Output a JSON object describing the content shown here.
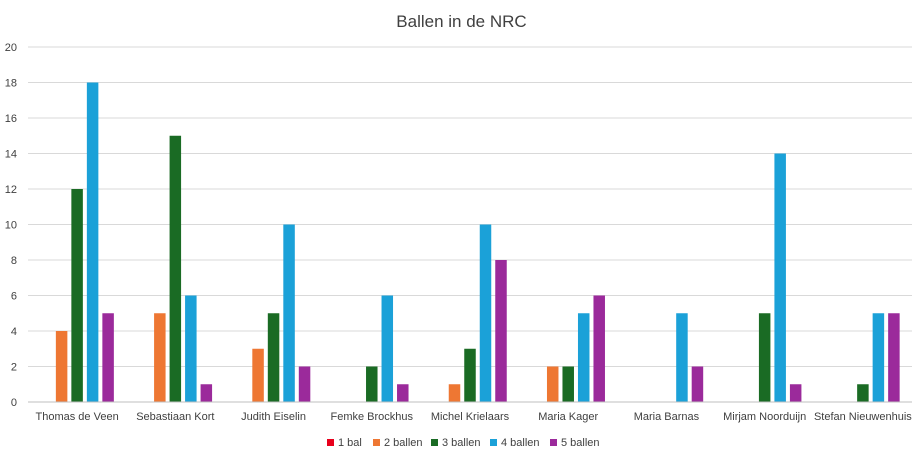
{
  "chart_data": {
    "type": "bar",
    "title": "Ballen in de NRC",
    "xlabel": "",
    "ylabel": "",
    "ylim": [
      0,
      20
    ],
    "yticks": [
      0,
      2,
      4,
      6,
      8,
      10,
      12,
      14,
      16,
      18,
      20
    ],
    "grid": true,
    "legend_position": "bottom",
    "categories": [
      "Thomas de Veen",
      "Sebastiaan Kort",
      "Judith Eiselin",
      "Femke Brockhus",
      "Michel Krielaars",
      "Maria Kager",
      "Maria Barnas",
      "Mirjam Noorduijn",
      "Stefan Nieuwenhuis"
    ],
    "series": [
      {
        "name": "1 bal",
        "color": "#e8001c",
        "values": [
          0,
          0,
          0,
          0,
          0,
          0,
          0,
          0,
          0
        ]
      },
      {
        "name": "2 ballen",
        "color": "#ee7733",
        "values": [
          4,
          5,
          3,
          0,
          1,
          2,
          0,
          0,
          0
        ]
      },
      {
        "name": "3 ballen",
        "color": "#1a6b24",
        "values": [
          12,
          15,
          5,
          2,
          3,
          2,
          0,
          5,
          1
        ]
      },
      {
        "name": "4 ballen",
        "color": "#1ba1d8",
        "values": [
          18,
          6,
          10,
          6,
          10,
          5,
          5,
          14,
          5
        ]
      },
      {
        "name": "5 ballen",
        "color": "#9b2a9b",
        "values": [
          5,
          1,
          2,
          1,
          8,
          6,
          2,
          1,
          5
        ]
      }
    ]
  }
}
